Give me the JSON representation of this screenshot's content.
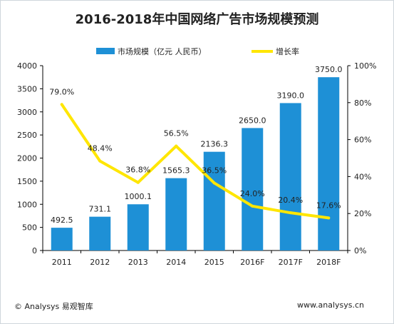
{
  "chart_data": {
    "type": "bar",
    "title": "2016-2018年中国网络广告市场规模预测",
    "categories": [
      "2011",
      "2012",
      "2013",
      "2014",
      "2015",
      "2016F",
      "2017F",
      "2018F"
    ],
    "series": [
      {
        "name": "市场规模（亿元 人民币）",
        "type": "bar",
        "axis": "left",
        "values": [
          492.5,
          731.1,
          1000.1,
          1565.3,
          2136.3,
          2650.0,
          3190.0,
          3750.0
        ],
        "labels": [
          "492.5",
          "731.1",
          "1000.1",
          "1565.3",
          "2136.3",
          "2650.0",
          "3190.0",
          "3750.0"
        ],
        "color": "#1e90d6"
      },
      {
        "name": "增长率",
        "type": "line",
        "axis": "right",
        "values": [
          79.0,
          48.4,
          36.8,
          56.5,
          36.5,
          24.0,
          20.4,
          17.6
        ],
        "labels": [
          "79.0%",
          "48.4%",
          "36.8%",
          "56.5%",
          "36.5%",
          "24.0%",
          "20.4%",
          "17.6%"
        ],
        "color": "#ffe600"
      }
    ],
    "y_left": {
      "min": 0,
      "max": 4000,
      "ticks": [
        "0",
        "500",
        "1000",
        "1500",
        "2000",
        "2500",
        "3000",
        "3500",
        "4000"
      ]
    },
    "y_right": {
      "min": 0,
      "max": 100,
      "ticks": [
        "0%",
        "20%",
        "40%",
        "60%",
        "80%",
        "100%"
      ]
    },
    "grid": false,
    "legend_position": "top"
  },
  "footer": {
    "source": "© Analysys 易观智库",
    "website": "www.analysys.cn"
  }
}
